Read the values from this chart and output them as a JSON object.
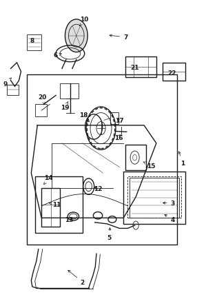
{
  "background_color": "#ffffff",
  "line_color": "#1a1a1a",
  "fig_width": 2.99,
  "fig_height": 4.35,
  "dpi": 100
}
